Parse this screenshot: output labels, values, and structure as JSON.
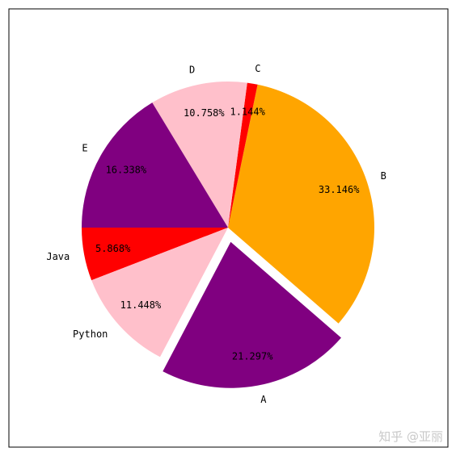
{
  "chart_data": {
    "type": "pie",
    "title": "",
    "start_angle_deg": 180,
    "direction": "counterclockwise",
    "categories": [
      "Java",
      "Python",
      "A",
      "B",
      "C",
      "D",
      "E"
    ],
    "values": [
      5.868,
      11.448,
      21.297,
      33.146,
      1.144,
      10.758,
      16.338
    ],
    "labels_pct": [
      "5.868%",
      "11.448%",
      "21.297%",
      "33.146%",
      "1.144%",
      "10.758%",
      "16.338%"
    ],
    "colors": [
      "#ff0000",
      "#ffc0cb",
      "#800080",
      "#ffa500",
      "#ff0000",
      "#ffc0cb",
      "#800080"
    ],
    "explode": [
      0,
      0,
      0.1,
      0,
      0,
      0,
      0
    ],
    "legend": "none"
  },
  "watermark": {
    "text": "知乎 @亚丽"
  }
}
